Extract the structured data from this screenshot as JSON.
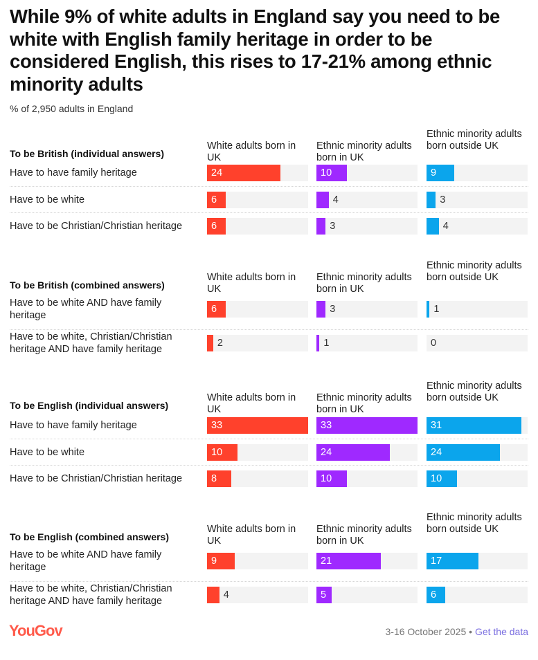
{
  "title": "While 9% of white adults in England say you need to be white with English family heritage in order to be considered English, this rises to 17-21% among ethnic minority adults",
  "subtitle": "% of 2,950 adults in England",
  "footer": {
    "logo": "YouGov",
    "date": "3-16 October 2025",
    "separator": "•",
    "link": "Get the data"
  },
  "colors": {
    "White adults born in UK": "#ff412c",
    "Ethnic minority adults born in UK": "#9f29ff",
    "Ethnic minority adults born outside UK": "#0ba5ec",
    "track": "#f3f3f3"
  },
  "chart_data": {
    "type": "bar",
    "orientation": "horizontal",
    "xlim": [
      0,
      33
    ],
    "columns": [
      "White adults born in UK",
      "Ethnic minority adults born in UK",
      "Ethnic minority adults born outside UK"
    ],
    "sections": [
      {
        "title": "To be British (individual answers)",
        "rows": [
          {
            "label": "Have to have family heritage",
            "values": [
              24,
              10,
              9
            ]
          },
          {
            "label": "Have to be white",
            "values": [
              6,
              4,
              3
            ]
          },
          {
            "label": "Have to be Christian/Christian heritage",
            "values": [
              6,
              3,
              4
            ]
          }
        ]
      },
      {
        "title": "To be British (combined answers)",
        "rows": [
          {
            "label": "Have to be white AND have family heritage",
            "values": [
              6,
              3,
              1
            ]
          },
          {
            "label": "Have to be white, Christian/Christian heritage AND have family heritage",
            "values": [
              2,
              1,
              0
            ]
          }
        ]
      },
      {
        "title": "To be English (individual answers)",
        "rows": [
          {
            "label": "Have to have family heritage",
            "values": [
              33,
              33,
              31
            ]
          },
          {
            "label": "Have to be white",
            "values": [
              10,
              24,
              24
            ]
          },
          {
            "label": "Have to be Christian/Christian heritage",
            "values": [
              8,
              10,
              10
            ]
          }
        ]
      },
      {
        "title": "To be English (combined answers)",
        "rows": [
          {
            "label": "Have to be white AND have family heritage",
            "values": [
              9,
              21,
              17
            ]
          },
          {
            "label": "Have to be white, Christian/Christian heritage AND have family heritage",
            "values": [
              4,
              5,
              6
            ]
          }
        ]
      }
    ]
  }
}
